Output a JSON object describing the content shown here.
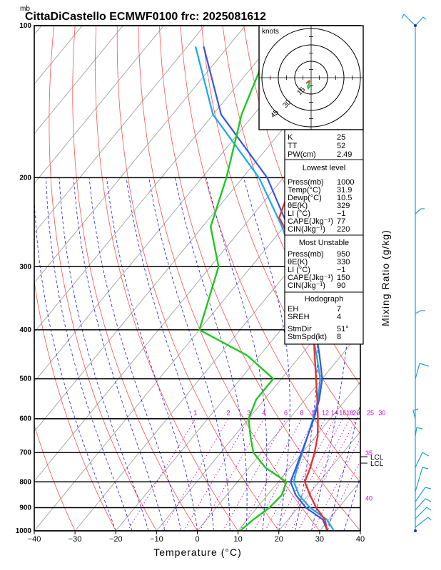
{
  "header": {
    "pressure_unit": "mb",
    "title": "CittaDiCastello ECMWF0100 frc: 2025081612"
  },
  "colors": {
    "temperature": "#e8322b",
    "dewpoint": "#1fc81f",
    "parcel": "#3a55e0",
    "virtual": "#18a8f0",
    "isotherm": "#a0a0a0",
    "dry_adiabat": "#ff5050",
    "moist_adiabat": "#2020d0",
    "mixing_ratio": "#cc00cc",
    "wind": "#1aa0e0"
  },
  "chart_data": {
    "type": "line",
    "title": "CittaDiCastello ECMWF0100 frc: 2025081612",
    "xlabel": "Temperature (°C)",
    "ylabel_right": "Mixing Ratio (g/kg)",
    "pressure_unit": "mb",
    "xlim": [
      -40,
      40
    ],
    "ylim": [
      1000,
      100
    ],
    "log_y": true,
    "x_ticks": [
      -40,
      -30,
      -20,
      -10,
      0,
      10,
      20,
      30,
      40
    ],
    "y_ticks": [
      1000,
      900,
      800,
      700,
      600,
      500,
      400,
      300,
      200,
      100
    ],
    "mixing_ratio_labels": [
      "1",
      "2",
      "3",
      "4",
      "6",
      "8",
      "10",
      "12",
      "14",
      "16",
      "18",
      "20",
      "25",
      "30",
      "35",
      "40"
    ],
    "lcl_labels": [
      "LCL",
      "LCL"
    ],
    "series": [
      {
        "key": "temperature",
        "p": [
          1000,
          950,
          900,
          850,
          800,
          750,
          700,
          650,
          600,
          550,
          500,
          450,
          400,
          350,
          300,
          250,
          240,
          200,
          150,
          100
        ],
        "t": [
          31.9,
          29,
          24.5,
          20.5,
          16.5,
          15,
          13,
          10.5,
          7,
          3,
          -1.5,
          -6.5,
          -12,
          -19.5,
          -28.5,
          -40,
          -43,
          -47.5,
          -52,
          -58
        ]
      },
      {
        "key": "dewpoint",
        "p": [
          1000,
          950,
          900,
          850,
          800,
          750,
          700,
          650,
          600,
          550,
          500,
          450,
          400,
          300,
          250,
          200,
          150,
          100
        ],
        "t": [
          10.5,
          11.5,
          13,
          13.5,
          12,
          4,
          -2,
          -6,
          -10,
          -12,
          -12,
          -23,
          -40,
          -48,
          -58,
          -64,
          -73,
          -82
        ]
      },
      {
        "key": "parcel",
        "p": [
          1000,
          950,
          900,
          850,
          800,
          750,
          700,
          650,
          600,
          550,
          500,
          450,
          400,
          350,
          300,
          250,
          200,
          150,
          110
        ],
        "t": [
          31.9,
          28.5,
          22,
          17,
          13,
          11.5,
          9.8,
          8,
          6,
          3.5,
          0,
          -5.3,
          -11.5,
          -19,
          -28,
          -39,
          -54,
          -78,
          -96
        ]
      },
      {
        "key": "virtual",
        "p": [
          1000,
          950,
          900,
          850,
          800,
          750,
          700,
          650,
          600,
          550,
          500,
          450,
          400,
          350,
          300,
          250,
          200,
          150,
          110
        ],
        "t": [
          33.5,
          29.5,
          23,
          17.8,
          13.8,
          11.8,
          10,
          8,
          5.8,
          3.2,
          -0.5,
          -6,
          -12.5,
          -20,
          -29,
          -40.5,
          -56,
          -80,
          -98
        ]
      }
    ],
    "hodograph": {
      "unit": "knots",
      "ring_labels": [
        "15",
        "30",
        "45"
      ]
    },
    "indices": {
      "top": [
        {
          "label": "K",
          "value": "25"
        },
        {
          "label": "TT",
          "value": "52"
        },
        {
          "label": "PW(cm)",
          "value": "2.49"
        }
      ],
      "lowest_level": {
        "header": "Lowest level",
        "rows": [
          {
            "label": "Press(mb)",
            "value": "1000"
          },
          {
            "label": "Temp(°C)",
            "value": "31.9"
          },
          {
            "label": "Dewp(°C)",
            "value": "10.5"
          },
          {
            "label": "θE(K)",
            "value": "329"
          },
          {
            "label": "LI (°C)",
            "value": "−1"
          },
          {
            "label": "CAPE(Jkg⁻¹)",
            "value": "77"
          },
          {
            "label": "CIN(Jkg⁻¹)",
            "value": "220"
          }
        ]
      },
      "most_unstable": {
        "header": "Most Unstable",
        "rows": [
          {
            "label": "Press(mb)",
            "value": "950"
          },
          {
            "label": "θE(K)",
            "value": "330"
          },
          {
            "label": "LI (°C)",
            "value": "−1"
          },
          {
            "label": "CAPE(Jkg⁻¹)",
            "value": "150"
          },
          {
            "label": "CIN(Jkg⁻¹)",
            "value": "90"
          }
        ]
      },
      "hodograph_params": {
        "header": "Hodograph",
        "rows": [
          {
            "label": "EH",
            "value": "7"
          },
          {
            "label": "SREH",
            "value": "4"
          },
          {
            "label": "StmDir",
            "value": "51°"
          },
          {
            "label": "StmSpd(kt)",
            "value": "8"
          }
        ]
      }
    }
  }
}
